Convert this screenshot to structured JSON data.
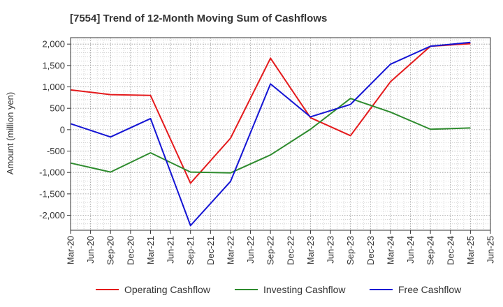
{
  "chart_data": {
    "type": "line",
    "title": "[7554]  Trend of 12-Month Moving Sum of Cashflows",
    "ylabel": "Amount (million yen)",
    "xlabel": "",
    "ylim": [
      -2350,
      2150
    ],
    "yticks": [
      2000,
      1500,
      1000,
      500,
      0,
      -500,
      -1000,
      -1500,
      -2000
    ],
    "ytick_labels": [
      "2,000",
      "1,500",
      "1,000",
      "500",
      "0",
      "-500",
      "-1,000",
      "-1,500",
      "-2,000"
    ],
    "categories": [
      "Mar-20",
      "Jun-20",
      "Sep-20",
      "Dec-20",
      "Mar-21",
      "Jun-21",
      "Sep-21",
      "Dec-21",
      "Mar-22",
      "Jun-22",
      "Sep-22",
      "Dec-22",
      "Mar-23",
      "Jun-23",
      "Sep-23",
      "Dec-23",
      "Mar-24",
      "Jun-24",
      "Sep-24",
      "Dec-24",
      "Mar-25",
      "Jun-25"
    ],
    "grid": true,
    "legend_position": "bottom",
    "series": [
      {
        "name": "Operating Cashflow",
        "color": "#e41a1c",
        "points": [
          [
            "Mar-20",
            930
          ],
          [
            "Sep-20",
            820
          ],
          [
            "Mar-21",
            800
          ],
          [
            "Sep-21",
            -1250
          ],
          [
            "Mar-22",
            -200
          ],
          [
            "Sep-22",
            1670
          ],
          [
            "Mar-23",
            280
          ],
          [
            "Sep-23",
            -140
          ],
          [
            "Mar-24",
            1120
          ],
          [
            "Sep-24",
            1950
          ],
          [
            "Mar-25",
            2010
          ]
        ]
      },
      {
        "name": "Investing Cashflow",
        "color": "#2e8b2e",
        "points": [
          [
            "Mar-20",
            -780
          ],
          [
            "Sep-20",
            -990
          ],
          [
            "Mar-21",
            -540
          ],
          [
            "Sep-21",
            -990
          ],
          [
            "Mar-22",
            -1010
          ],
          [
            "Sep-22",
            -590
          ],
          [
            "Mar-23",
            10
          ],
          [
            "Sep-23",
            730
          ],
          [
            "Mar-24",
            410
          ],
          [
            "Sep-24",
            10
          ],
          [
            "Mar-25",
            40
          ]
        ]
      },
      {
        "name": "Free Cashflow",
        "color": "#1414d4",
        "points": [
          [
            "Mar-20",
            140
          ],
          [
            "Sep-20",
            -170
          ],
          [
            "Mar-21",
            260
          ],
          [
            "Sep-21",
            -2240
          ],
          [
            "Mar-22",
            -1210
          ],
          [
            "Sep-22",
            1070
          ],
          [
            "Mar-23",
            300
          ],
          [
            "Sep-23",
            590
          ],
          [
            "Mar-24",
            1530
          ],
          [
            "Sep-24",
            1950
          ],
          [
            "Mar-25",
            2040
          ]
        ]
      }
    ]
  }
}
